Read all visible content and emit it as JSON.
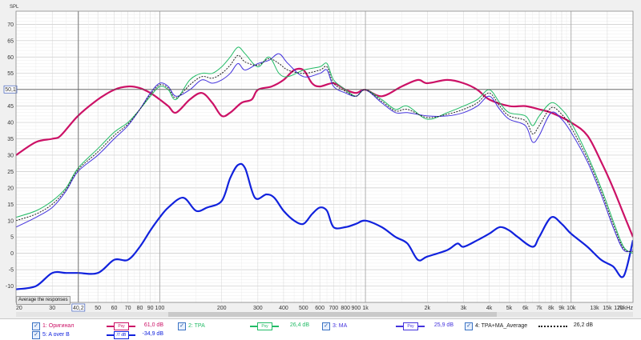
{
  "chart": {
    "y_axis_title": "SPL",
    "average_button": "Average the responses",
    "cursor_y_value": "50,1",
    "cursor_x_value": "40,2"
  },
  "chart_data": {
    "type": "line",
    "xscale": "log",
    "xlim": [
      20,
      20000
    ],
    "ylim": [
      -15,
      74
    ],
    "grid": true,
    "y_ticks": [
      70,
      65,
      60,
      55,
      50,
      45,
      40,
      35,
      30,
      25,
      20,
      15,
      10,
      5,
      0,
      -5,
      -10
    ],
    "x_ticks": [
      {
        "v": 20,
        "label": "20"
      },
      {
        "v": 30,
        "label": "30"
      },
      {
        "v": 50,
        "label": "50"
      },
      {
        "v": 60,
        "label": "60"
      },
      {
        "v": 70,
        "label": "70"
      },
      {
        "v": 80,
        "label": "80"
      },
      {
        "v": 90,
        "label": "90"
      },
      {
        "v": 100,
        "label": "100"
      },
      {
        "v": 200,
        "label": "200"
      },
      {
        "v": 300,
        "label": "300"
      },
      {
        "v": 400,
        "label": "400"
      },
      {
        "v": 500,
        "label": "500"
      },
      {
        "v": 600,
        "label": "600"
      },
      {
        "v": 700,
        "label": "700"
      },
      {
        "v": 800,
        "label": "800"
      },
      {
        "v": 900,
        "label": "900"
      },
      {
        "v": 1000,
        "label": "1k"
      },
      {
        "v": 2000,
        "label": "2k"
      },
      {
        "v": 3000,
        "label": "3k"
      },
      {
        "v": 4000,
        "label": "4k"
      },
      {
        "v": 5000,
        "label": "5k"
      },
      {
        "v": 6000,
        "label": "6k"
      },
      {
        "v": 7000,
        "label": "7k"
      },
      {
        "v": 8000,
        "label": "8k"
      },
      {
        "v": 9000,
        "label": "9k"
      },
      {
        "v": 10000,
        "label": "10k"
      },
      {
        "v": 13000,
        "label": "13k"
      },
      {
        "v": 15000,
        "label": "15k"
      },
      {
        "v": 17000,
        "label": "17k"
      },
      {
        "v": 20000,
        "label": "20kHz"
      }
    ],
    "cursor": {
      "x": 40.2,
      "y": 50.1
    },
    "series": [
      {
        "id": "orig",
        "color": "#cc1166",
        "width": 2.2,
        "dash": "",
        "points": [
          [
            20,
            30
          ],
          [
            25,
            34
          ],
          [
            30,
            35
          ],
          [
            33,
            36
          ],
          [
            40,
            42
          ],
          [
            50,
            47
          ],
          [
            60,
            50
          ],
          [
            70,
            51
          ],
          [
            80,
            50.5
          ],
          [
            90,
            49
          ],
          [
            100,
            47
          ],
          [
            110,
            45
          ],
          [
            120,
            43
          ],
          [
            140,
            47
          ],
          [
            160,
            49
          ],
          [
            180,
            46
          ],
          [
            200,
            42
          ],
          [
            220,
            43
          ],
          [
            250,
            46
          ],
          [
            280,
            47
          ],
          [
            300,
            50
          ],
          [
            350,
            51
          ],
          [
            400,
            53
          ],
          [
            450,
            56
          ],
          [
            500,
            56
          ],
          [
            550,
            52
          ],
          [
            600,
            51
          ],
          [
            700,
            52
          ],
          [
            800,
            50
          ],
          [
            900,
            49
          ],
          [
            1000,
            50
          ],
          [
            1200,
            48
          ],
          [
            1500,
            51
          ],
          [
            1800,
            53
          ],
          [
            2000,
            52
          ],
          [
            2500,
            53
          ],
          [
            3000,
            52
          ],
          [
            3500,
            50
          ],
          [
            4000,
            47
          ],
          [
            5000,
            45
          ],
          [
            6000,
            45
          ],
          [
            7000,
            44
          ],
          [
            8000,
            43
          ],
          [
            10000,
            40
          ],
          [
            12000,
            36
          ],
          [
            14000,
            28
          ],
          [
            16000,
            20
          ],
          [
            18000,
            12
          ],
          [
            20000,
            5
          ]
        ]
      },
      {
        "id": "tpa",
        "color": "#22bb66",
        "width": 1.0,
        "dash": "",
        "points": [
          [
            20,
            11
          ],
          [
            25,
            13
          ],
          [
            30,
            16
          ],
          [
            35,
            20
          ],
          [
            40,
            26
          ],
          [
            50,
            32
          ],
          [
            60,
            37
          ],
          [
            70,
            40
          ],
          [
            80,
            44
          ],
          [
            90,
            48
          ],
          [
            100,
            51
          ],
          [
            110,
            50
          ],
          [
            120,
            47
          ],
          [
            140,
            53
          ],
          [
            160,
            55
          ],
          [
            180,
            55
          ],
          [
            200,
            57
          ],
          [
            220,
            60
          ],
          [
            240,
            63
          ],
          [
            260,
            61
          ],
          [
            300,
            57
          ],
          [
            340,
            60
          ],
          [
            380,
            55
          ],
          [
            420,
            54
          ],
          [
            500,
            56
          ],
          [
            600,
            57
          ],
          [
            650,
            58
          ],
          [
            700,
            53
          ],
          [
            800,
            50
          ],
          [
            900,
            48
          ],
          [
            1000,
            50
          ],
          [
            1200,
            47
          ],
          [
            1400,
            44
          ],
          [
            1600,
            45
          ],
          [
            2000,
            41
          ],
          [
            2500,
            43
          ],
          [
            3000,
            45
          ],
          [
            3500,
            47
          ],
          [
            4000,
            50
          ],
          [
            4500,
            46
          ],
          [
            5000,
            43
          ],
          [
            6000,
            42
          ],
          [
            6500,
            39
          ],
          [
            7000,
            42
          ],
          [
            8000,
            46
          ],
          [
            9000,
            44
          ],
          [
            10000,
            40
          ],
          [
            12000,
            30
          ],
          [
            14000,
            20
          ],
          [
            16000,
            10
          ],
          [
            18000,
            2
          ],
          [
            20000,
            0
          ]
        ]
      },
      {
        "id": "ma",
        "color": "#4433dd",
        "width": 1.0,
        "dash": "",
        "points": [
          [
            20,
            8
          ],
          [
            25,
            11
          ],
          [
            30,
            14
          ],
          [
            35,
            19
          ],
          [
            40,
            25
          ],
          [
            50,
            30
          ],
          [
            60,
            35
          ],
          [
            70,
            39
          ],
          [
            80,
            44
          ],
          [
            90,
            49
          ],
          [
            100,
            52
          ],
          [
            110,
            51
          ],
          [
            120,
            48
          ],
          [
            140,
            50
          ],
          [
            160,
            53
          ],
          [
            180,
            52
          ],
          [
            200,
            53
          ],
          [
            220,
            55
          ],
          [
            240,
            58
          ],
          [
            260,
            56
          ],
          [
            300,
            58
          ],
          [
            340,
            59
          ],
          [
            380,
            61
          ],
          [
            420,
            58
          ],
          [
            500,
            54
          ],
          [
            600,
            55
          ],
          [
            650,
            56
          ],
          [
            700,
            51
          ],
          [
            800,
            49
          ],
          [
            900,
            48
          ],
          [
            1000,
            50
          ],
          [
            1200,
            46
          ],
          [
            1400,
            43
          ],
          [
            1600,
            43
          ],
          [
            2000,
            42
          ],
          [
            2500,
            42
          ],
          [
            3000,
            43
          ],
          [
            3500,
            45
          ],
          [
            4000,
            48
          ],
          [
            4500,
            44
          ],
          [
            5000,
            41
          ],
          [
            6000,
            39
          ],
          [
            6500,
            34
          ],
          [
            7000,
            36
          ],
          [
            8000,
            43
          ],
          [
            9000,
            41
          ],
          [
            10000,
            37
          ],
          [
            12000,
            28
          ],
          [
            14000,
            18
          ],
          [
            16000,
            8
          ],
          [
            18000,
            1
          ],
          [
            20000,
            1
          ]
        ]
      },
      {
        "id": "avg",
        "color": "#222222",
        "width": 1.0,
        "dash": "2,1.5",
        "points": [
          [
            20,
            10
          ],
          [
            25,
            12
          ],
          [
            30,
            15
          ],
          [
            35,
            19.5
          ],
          [
            40,
            25.5
          ],
          [
            50,
            31
          ],
          [
            60,
            36
          ],
          [
            70,
            39.5
          ],
          [
            80,
            44
          ],
          [
            90,
            48.5
          ],
          [
            100,
            51.5
          ],
          [
            110,
            50.5
          ],
          [
            120,
            47.5
          ],
          [
            140,
            51.5
          ],
          [
            160,
            54
          ],
          [
            180,
            53.5
          ],
          [
            200,
            55
          ],
          [
            220,
            57.5
          ],
          [
            240,
            60.5
          ],
          [
            260,
            58.5
          ],
          [
            300,
            57.5
          ],
          [
            340,
            59.5
          ],
          [
            380,
            58
          ],
          [
            420,
            56
          ],
          [
            500,
            55
          ],
          [
            600,
            56
          ],
          [
            650,
            57
          ],
          [
            700,
            52
          ],
          [
            800,
            49.5
          ],
          [
            900,
            48
          ],
          [
            1000,
            50
          ],
          [
            1200,
            46.5
          ],
          [
            1400,
            43.5
          ],
          [
            1600,
            44
          ],
          [
            2000,
            41.5
          ],
          [
            2500,
            42.5
          ],
          [
            3000,
            44
          ],
          [
            3500,
            46
          ],
          [
            4000,
            49
          ],
          [
            4500,
            45
          ],
          [
            5000,
            42
          ],
          [
            6000,
            40.5
          ],
          [
            6500,
            36.5
          ],
          [
            7000,
            39
          ],
          [
            8000,
            44.5
          ],
          [
            9000,
            42.5
          ],
          [
            10000,
            38.5
          ],
          [
            12000,
            29
          ],
          [
            14000,
            19
          ],
          [
            16000,
            9
          ],
          [
            18000,
            1.5
          ],
          [
            20000,
            0.5
          ]
        ]
      },
      {
        "id": "aoverb",
        "color": "#1122dd",
        "width": 2.2,
        "dash": "",
        "points": [
          [
            20,
            -11
          ],
          [
            25,
            -10
          ],
          [
            30,
            -6
          ],
          [
            35,
            -6
          ],
          [
            40,
            -6
          ],
          [
            50,
            -6
          ],
          [
            60,
            -2
          ],
          [
            70,
            -2
          ],
          [
            80,
            2
          ],
          [
            90,
            7
          ],
          [
            100,
            11
          ],
          [
            110,
            14
          ],
          [
            130,
            17
          ],
          [
            150,
            13
          ],
          [
            170,
            14
          ],
          [
            200,
            16
          ],
          [
            220,
            23
          ],
          [
            240,
            27
          ],
          [
            260,
            26
          ],
          [
            290,
            17
          ],
          [
            330,
            18
          ],
          [
            360,
            17
          ],
          [
            400,
            13
          ],
          [
            450,
            10
          ],
          [
            500,
            9
          ],
          [
            550,
            12
          ],
          [
            600,
            14
          ],
          [
            650,
            13
          ],
          [
            700,
            8
          ],
          [
            800,
            8
          ],
          [
            900,
            9
          ],
          [
            1000,
            10
          ],
          [
            1200,
            8
          ],
          [
            1400,
            5
          ],
          [
            1600,
            3
          ],
          [
            1800,
            -2
          ],
          [
            2000,
            -1
          ],
          [
            2500,
            1
          ],
          [
            2800,
            3
          ],
          [
            3000,
            2
          ],
          [
            3500,
            4
          ],
          [
            4000,
            6
          ],
          [
            4500,
            8
          ],
          [
            5000,
            7
          ],
          [
            5500,
            5
          ],
          [
            6500,
            2
          ],
          [
            7000,
            5
          ],
          [
            8000,
            11
          ],
          [
            9000,
            9
          ],
          [
            10000,
            6
          ],
          [
            12000,
            2
          ],
          [
            14000,
            -2
          ],
          [
            16000,
            -4
          ],
          [
            18000,
            -7
          ],
          [
            20000,
            4
          ]
        ]
      }
    ]
  },
  "legend": [
    {
      "num": "1:",
      "name": "Оригинал",
      "value": "61,0 dB",
      "color": "#cc1166",
      "box": "Psy"
    },
    {
      "num": "2:",
      "name": "TPA",
      "value": "26,4 dB",
      "color": "#22bb66",
      "box": "Psy"
    },
    {
      "num": "3:",
      "name": "MA",
      "value": "25,9 dB",
      "color": "#4433dd",
      "box": "Psy"
    },
    {
      "num": "4:",
      "name": "TPA+MA_Average",
      "value": "26,2 dB",
      "color": "#222222",
      "box": ""
    },
    {
      "num": "5:",
      "name": "A over B",
      "value": "-34,9 dB",
      "color": "#1122dd",
      "box": "/7 dB"
    }
  ]
}
